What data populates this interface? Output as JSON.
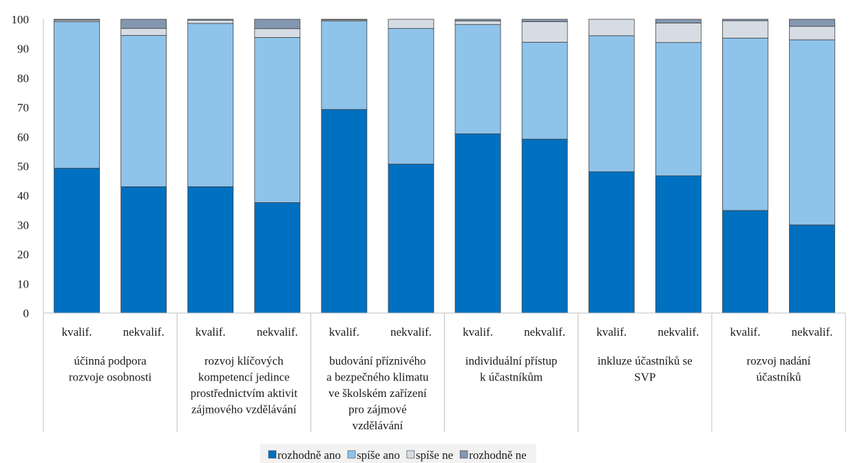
{
  "chart_data": {
    "type": "bar",
    "stacked": true,
    "title": "",
    "xlabel": "",
    "ylabel": "",
    "ylim": [
      0,
      100
    ],
    "yticks": [
      0,
      10,
      20,
      30,
      40,
      50,
      60,
      70,
      80,
      90,
      100
    ],
    "grid": false,
    "legend_position": "bottom",
    "groups": [
      {
        "label": [
          "účinná podpora",
          "rozvoje osobnosti"
        ]
      },
      {
        "label": [
          "rozvoj klíčových",
          "kompetencí jedince",
          "prostřednictvím aktivit",
          "zájmového vzdělávání"
        ]
      },
      {
        "label": [
          "budování příznivého",
          "a bezpečného klimatu",
          "ve školském zařízení",
          "pro zájmové",
          "vzdělávání"
        ]
      },
      {
        "label": [
          "individuální přístup",
          "k účastníkům"
        ]
      },
      {
        "label": [
          "inkluze účastníků se",
          "SVP"
        ]
      },
      {
        "label": [
          "rozvoj nadání",
          "účastníků"
        ]
      }
    ],
    "subcategories": [
      "kvalif.",
      "nekvalif."
    ],
    "series": [
      {
        "name": "rozhodně ano",
        "color": "#0070C0",
        "values": [
          49.3,
          43.0,
          43.0,
          37.6,
          69.3,
          50.7,
          61.0,
          59.2,
          48.1,
          46.7,
          34.9,
          30.0
        ]
      },
      {
        "name": "spíše ano",
        "color": "#8EC3EA",
        "values": [
          49.9,
          51.5,
          55.6,
          56.2,
          30.1,
          46.2,
          37.2,
          33.0,
          46.3,
          45.4,
          58.7,
          63.0
        ]
      },
      {
        "name": "spíše ne",
        "color": "#D6DCE4",
        "values": [
          0.5,
          2.4,
          1.1,
          3.0,
          0.4,
          3.1,
          1.2,
          7.0,
          5.6,
          6.6,
          5.9,
          4.6
        ]
      },
      {
        "name": "rozhodně ne",
        "color": "#8497B0",
        "values": [
          0.3,
          3.1,
          0.3,
          3.2,
          0.2,
          0.0,
          0.6,
          0.8,
          0.0,
          1.3,
          0.5,
          2.4
        ]
      }
    ]
  }
}
